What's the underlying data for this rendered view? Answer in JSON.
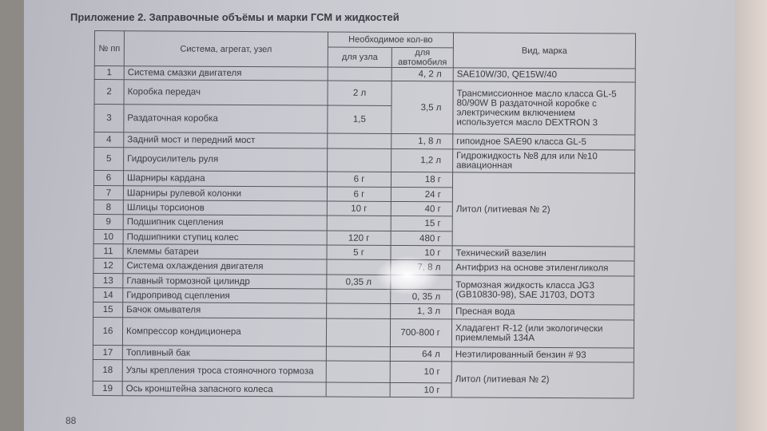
{
  "title": "Приложение 2. Заправочные объёмы и марки ГСМ и жидкостей",
  "headers": {
    "num": "№ пп",
    "system": "Система, агрегат, узел",
    "qty": "Необходимое кол-во",
    "unit": "для узла",
    "car": "для автомобиля",
    "brand": "Вид, марка"
  },
  "rows": [
    {
      "n": "1",
      "name": "Система смазки двигателя",
      "unit": "",
      "car": "4, 2 л",
      "brand": "SAE10W/30, QE15W/40"
    },
    {
      "n": "2",
      "name": "Коробка передач",
      "unit": "2 л",
      "car": "3,5 л",
      "brand": "Трансмиссионное масло класса GL-5  80/90W В раздаточной коробке с электрическим включением используется масло DEXTRON 3"
    },
    {
      "n": "3",
      "name": "Раздаточная коробка",
      "unit": "1,5"
    },
    {
      "n": "4",
      "name": "Задний мост и передний мост",
      "unit": "",
      "car": "1, 8 л",
      "brand": "гипоидное SAE90 класса GL-5"
    },
    {
      "n": "5",
      "name": "Гидроусилитель руля",
      "unit": "",
      "car": "1,2 л",
      "brand": "Гидрожидкость №8 для  или №10 авиационная"
    },
    {
      "n": "6",
      "name": "Шарниры кардана",
      "unit": "6 г",
      "car": "18 г",
      "brand": "Литол (литиевая № 2)"
    },
    {
      "n": "7",
      "name": "Шарниры рулевой колонки",
      "unit": "6 г",
      "car": "24 г"
    },
    {
      "n": "8",
      "name": "Шлицы торсионов",
      "unit": "10 г",
      "car": "40 г"
    },
    {
      "n": "9",
      "name": "Подшипник сцепления",
      "unit": "",
      "car": "15 г"
    },
    {
      "n": "10",
      "name": "Подшипники ступиц колес",
      "unit": "120 г",
      "car": "480 г"
    },
    {
      "n": "11",
      "name": "Клеммы батареи",
      "unit": "5 г",
      "car": "10 г",
      "brand": "Технический вазелин"
    },
    {
      "n": "12",
      "name": "Система охлаждения двигателя",
      "unit": "",
      "car": "7, 8 л",
      "brand": "Антифриз на основе этиленгликоля"
    },
    {
      "n": "13",
      "name": "Главный тормозной цилиндр",
      "unit": "0,35 л",
      "car": "",
      "brand": "Тормозная жидкость класса JG3 (GB10830-98), SAE J1703, DOT3"
    },
    {
      "n": "14",
      "name": "Гидропривод сцепления",
      "unit": "",
      "car": "0, 35 л"
    },
    {
      "n": "15",
      "name": "Бачок омывателя",
      "unit": "",
      "car": "1, 3 л",
      "brand": "Пресная вода"
    },
    {
      "n": "16",
      "name": "Компрессор кондиционера",
      "unit": "",
      "car": "700-800 г",
      "brand": "Хладагент R-12 (или экологически приемлемый 134A"
    },
    {
      "n": "17",
      "name": "Топливный бак",
      "unit": "",
      "car": "64 л",
      "brand": "Неэтилированный бензин # 93"
    },
    {
      "n": "18",
      "name": "Узлы крепления троса стояночного тормоза",
      "unit": "",
      "car": "10 г",
      "brand": "Литол (литиевая № 2)"
    },
    {
      "n": "19",
      "name": "Ось кронштейна запасного колеса",
      "unit": "",
      "car": "10 г"
    }
  ],
  "page_number": "88"
}
